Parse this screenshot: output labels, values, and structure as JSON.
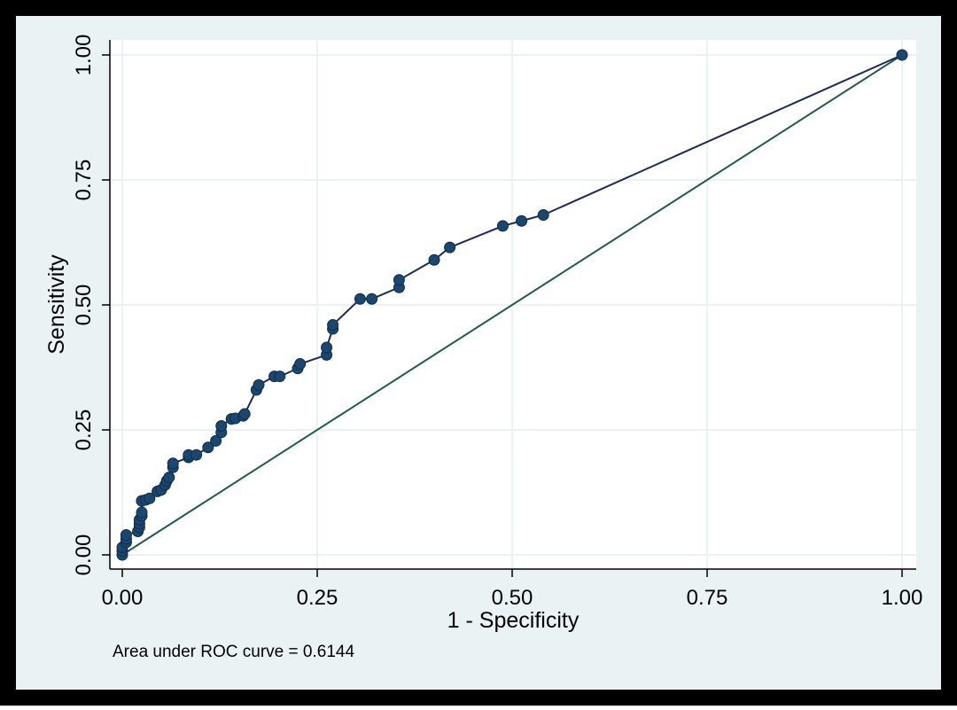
{
  "chart_data": {
    "type": "line",
    "xlabel": "1 - Specificity",
    "ylabel": "Sensitivity",
    "xlim": [
      0,
      1
    ],
    "ylim": [
      0,
      1
    ],
    "x_ticks": [
      "0.00",
      "0.25",
      "0.50",
      "0.75",
      "1.00"
    ],
    "y_ticks": [
      "0.00",
      "0.25",
      "0.50",
      "0.75",
      "1.00"
    ],
    "grid": true,
    "note": "Area under ROC curve = 0.6144",
    "colors": {
      "frame": "#000000",
      "outer_background": "#eaf2f3",
      "plot_background": "#ffffff",
      "grid": "#eaf2f3",
      "roc_line": "#1a2a5c",
      "roc_marker": "#1a476f",
      "reference_line": "#1e5b4b"
    },
    "series": [
      {
        "kind": "roc",
        "x": [
          0,
          0,
          0,
          0.005,
          0.005,
          0.005,
          0.02,
          0.022,
          0.022,
          0.022,
          0.025,
          0.025,
          0.025,
          0.025,
          0.03,
          0.035,
          0.045,
          0.05,
          0.055,
          0.057,
          0.06,
          0.065,
          0.065,
          0.085,
          0.085,
          0.095,
          0.11,
          0.12,
          0.127,
          0.127,
          0.14,
          0.145,
          0.155,
          0.157,
          0.172,
          0.175,
          0.195,
          0.202,
          0.225,
          0.228,
          0.262,
          0.262,
          0.27,
          0.27,
          0.305,
          0.32,
          0.355,
          0.355,
          0.4,
          0.42,
          0.488,
          0.512,
          0.54,
          1
        ],
        "y": [
          0,
          0.008,
          0.015,
          0.025,
          0.032,
          0.04,
          0.047,
          0.055,
          0.062,
          0.07,
          0.078,
          0.085,
          0.108,
          0.108,
          0.11,
          0.113,
          0.127,
          0.13,
          0.14,
          0.148,
          0.155,
          0.175,
          0.183,
          0.195,
          0.2,
          0.2,
          0.215,
          0.228,
          0.245,
          0.258,
          0.272,
          0.273,
          0.278,
          0.282,
          0.33,
          0.34,
          0.357,
          0.357,
          0.373,
          0.382,
          0.4,
          0.415,
          0.452,
          0.46,
          0.512,
          0.512,
          0.535,
          0.55,
          0.59,
          0.615,
          0.658,
          0.668,
          0.68,
          1
        ]
      },
      {
        "kind": "reference",
        "x": [
          0,
          1
        ],
        "y": [
          0,
          1
        ]
      }
    ]
  }
}
